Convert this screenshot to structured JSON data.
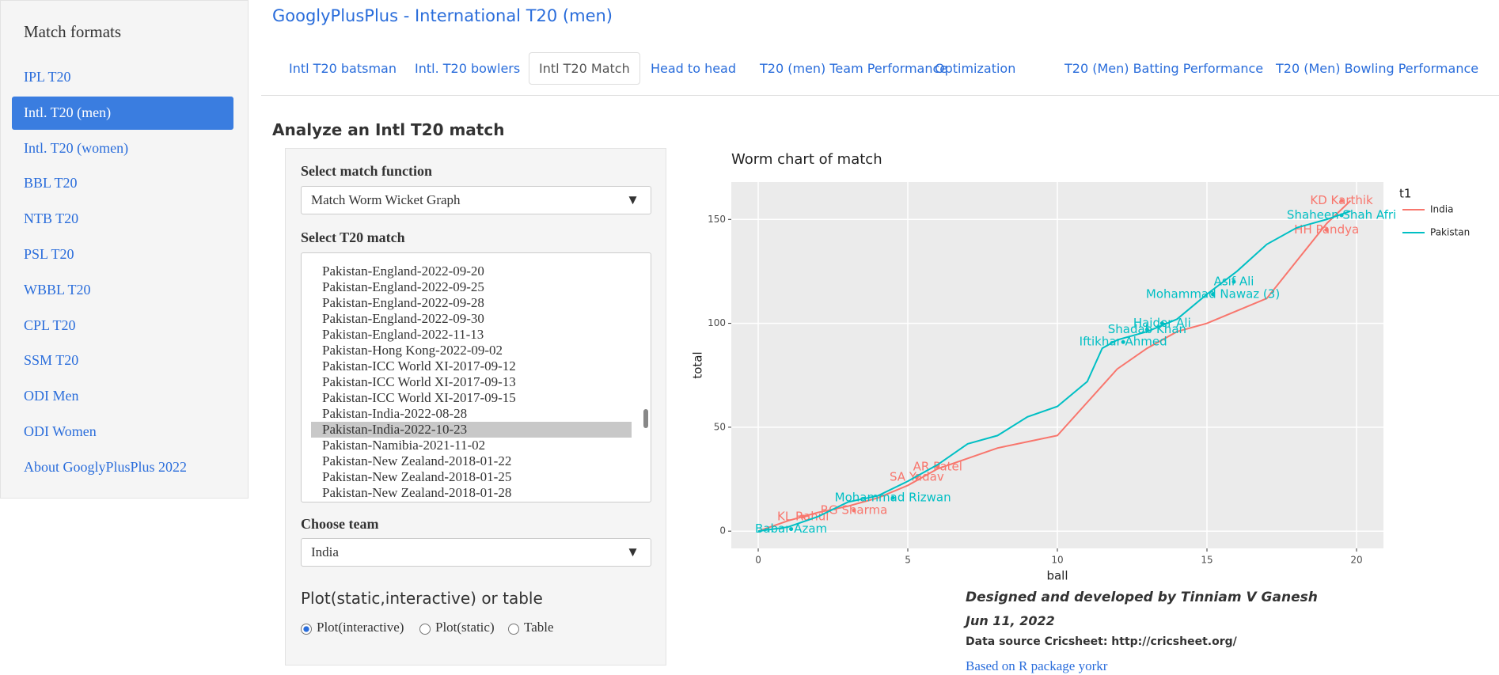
{
  "app_title": "GooglyPlusPlus - International T20 (men)",
  "sidebar": {
    "heading": "Match formats",
    "items": [
      "IPL T20",
      "Intl. T20 (men)",
      "Intl. T20 (women)",
      "BBL T20",
      "NTB T20",
      "PSL T20",
      "WBBL T20",
      "CPL T20",
      "SSM T20",
      "ODI Men",
      "ODI Women",
      "About GooglyPlusPlus 2022"
    ]
  },
  "tabs": [
    "Intl T20 batsman",
    "Intl. T20 bowlers",
    "Intl T20 Match",
    "Head to head",
    "T20 (men) Team Performance",
    "Optimization",
    "T20 (Men) Batting Performance",
    "T20 (Men) Bowling Performance"
  ],
  "section_title": "Analyze an Intl T20 match",
  "form": {
    "function_label": "Select match function",
    "function_value": "Match Worm Wicket Graph",
    "match_label": "Select T20 match",
    "matches": [
      "Pakistan-England-2022-09-20",
      "Pakistan-England-2022-09-25",
      "Pakistan-England-2022-09-28",
      "Pakistan-England-2022-09-30",
      "Pakistan-England-2022-11-13",
      "Pakistan-Hong Kong-2022-09-02",
      "Pakistan-ICC World XI-2017-09-12",
      "Pakistan-ICC World XI-2017-09-13",
      "Pakistan-ICC World XI-2017-09-15",
      "Pakistan-India-2022-08-28",
      "Pakistan-India-2022-10-23",
      "Pakistan-Namibia-2021-11-02",
      "Pakistan-New Zealand-2018-01-22",
      "Pakistan-New Zealand-2018-01-25",
      "Pakistan-New Zealand-2018-01-28"
    ],
    "team_label": "Choose team",
    "team_value": "India",
    "output_label": "Plot(static,interactive) or table",
    "options": [
      "Plot(interactive)",
      "Plot(static)",
      "Table"
    ]
  },
  "chart_data": {
    "type": "line",
    "title": "Worm chart of match",
    "x_label": "ball",
    "y_label": "total",
    "legend_title": "t1",
    "xlim": [
      -0.9,
      20.9
    ],
    "ylim": [
      -8.3,
      168
    ],
    "xticks": [
      0,
      5,
      10,
      15,
      20
    ],
    "yticks": [
      0,
      50,
      100,
      150
    ],
    "grid": true,
    "series": [
      {
        "name": "India",
        "color": "#F8766D",
        "x": [
          0,
          1,
          2,
          3,
          4,
          5,
          6,
          7,
          8,
          9,
          10,
          11,
          12,
          13,
          14,
          15,
          16,
          17,
          18,
          19,
          19.8
        ],
        "values": [
          0,
          5,
          9,
          12,
          16,
          22,
          30,
          35,
          40,
          43,
          46,
          62,
          78,
          88,
          96,
          100,
          106,
          112,
          130,
          148,
          159
        ],
        "wickets": [
          {
            "label": "KL Rahul",
            "x": 1.5,
            "y": 7
          },
          {
            "label": "RG Sharma",
            "x": 3.2,
            "y": 10
          },
          {
            "label": "SA Yadav",
            "x": 5.3,
            "y": 26
          },
          {
            "label": "AR Patel",
            "x": 6,
            "y": 31
          },
          {
            "label": "HH Pandya",
            "x": 19,
            "y": 145
          },
          {
            "label": "KD Karthik",
            "x": 19.5,
            "y": 159
          }
        ]
      },
      {
        "name": "Pakistan",
        "color": "#00BFC4",
        "x": [
          0,
          1,
          2,
          3,
          4,
          5,
          6,
          7,
          8,
          9,
          10,
          11,
          11.5,
          12,
          13,
          14,
          15,
          16,
          17,
          18,
          19,
          19.8
        ],
        "values": [
          0,
          2,
          7,
          14,
          17,
          24,
          32,
          42,
          46,
          55,
          60,
          72,
          88,
          92,
          96,
          102,
          114,
          125,
          138,
          146,
          150,
          154
        ],
        "wickets": [
          {
            "label": "Babar Azam",
            "x": 1.1,
            "y": 1
          },
          {
            "label": "Mohammad Rizwan",
            "x": 4.5,
            "y": 16
          },
          {
            "label": "Iftikhar Ahmed",
            "x": 12.2,
            "y": 91
          },
          {
            "label": "Shadab Khan",
            "x": 13,
            "y": 97
          },
          {
            "label": "Haider Ali",
            "x": 13.5,
            "y": 100
          },
          {
            "label": "Mohammad Nawaz (3)",
            "x": 15.2,
            "y": 114
          },
          {
            "label": "Asif Ali",
            "x": 15.9,
            "y": 120
          },
          {
            "label": "Shaheen Shah Afri",
            "x": 19.5,
            "y": 152
          }
        ]
      }
    ]
  },
  "footer": {
    "designer": "Designed and developed by Tinniam V Ganesh",
    "date": "Jun 11, 2022",
    "source": "Data source Cricsheet: http://cricsheet.org/",
    "package": "Based on R package yorkr"
  }
}
